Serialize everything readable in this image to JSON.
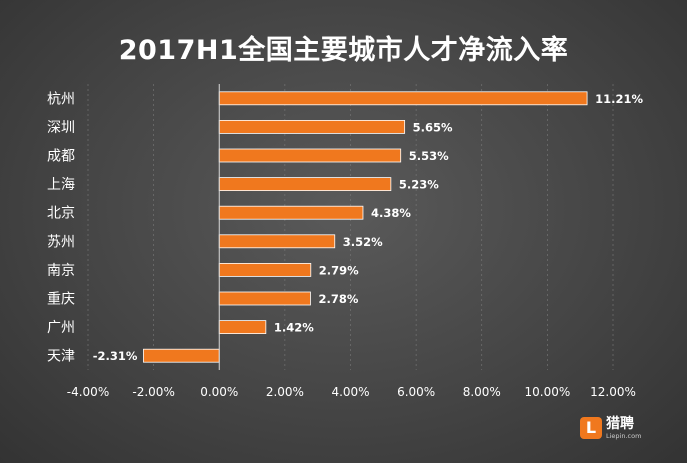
{
  "chart_data": {
    "type": "bar",
    "orientation": "horizontal",
    "title": "2017H1全国主要城市人才净流入率",
    "categories": [
      "杭州",
      "深圳",
      "成都",
      "上海",
      "北京",
      "苏州",
      "南京",
      "重庆",
      "广州",
      "天津"
    ],
    "values": [
      11.21,
      5.65,
      5.53,
      5.23,
      4.38,
      3.52,
      2.79,
      2.78,
      1.42,
      -2.31
    ],
    "value_labels": [
      "11.21%",
      "5.65%",
      "5.53%",
      "5.23%",
      "4.38%",
      "3.52%",
      "2.79%",
      "2.78%",
      "1.42%",
      "-2.31%"
    ],
    "xlim": [
      -4,
      12
    ],
    "x_ticks": [
      -4,
      -2,
      0,
      2,
      4,
      6,
      8,
      10,
      12
    ],
    "x_tick_labels": [
      "-4.00%",
      "-2.00%",
      "0.00%",
      "2.00%",
      "4.00%",
      "6.00%",
      "8.00%",
      "10.00%",
      "12.00%"
    ],
    "bar_color": "#f0781e",
    "grid": true,
    "legend": "none"
  },
  "logo": {
    "mark": "L",
    "name": "猎聘",
    "url": "Liepin.com"
  }
}
